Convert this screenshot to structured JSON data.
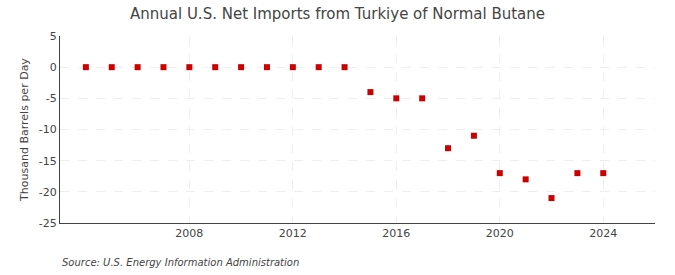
{
  "chart_data": {
    "type": "scatter",
    "title": "Annual U.S. Net Imports from Turkiye of Normal Butane",
    "ylabel": "Thousand Barrels per Day",
    "annotations": [
      "Source: U.S. Energy Information Administration"
    ],
    "x": [
      2004,
      2005,
      2006,
      2007,
      2008,
      2009,
      2010,
      2011,
      2012,
      2013,
      2014,
      2015,
      2016,
      2017,
      2018,
      2019,
      2020,
      2021,
      2022,
      2023,
      2024
    ],
    "values": [
      0,
      0,
      0,
      0,
      0,
      0,
      0,
      0,
      0,
      0,
      0,
      -4,
      -5,
      -5,
      -13,
      -11,
      -17,
      -18,
      -21,
      -17,
      -17
    ],
    "color": "#cc0000",
    "marker": "square",
    "xlim": [
      2003,
      2026
    ],
    "xticks": [
      2008,
      2012,
      2016,
      2020,
      2024
    ],
    "ylim": [
      -25,
      5
    ],
    "yticks": [
      5,
      0,
      -5,
      -10,
      -15,
      -20,
      -25
    ],
    "grid": true
  }
}
